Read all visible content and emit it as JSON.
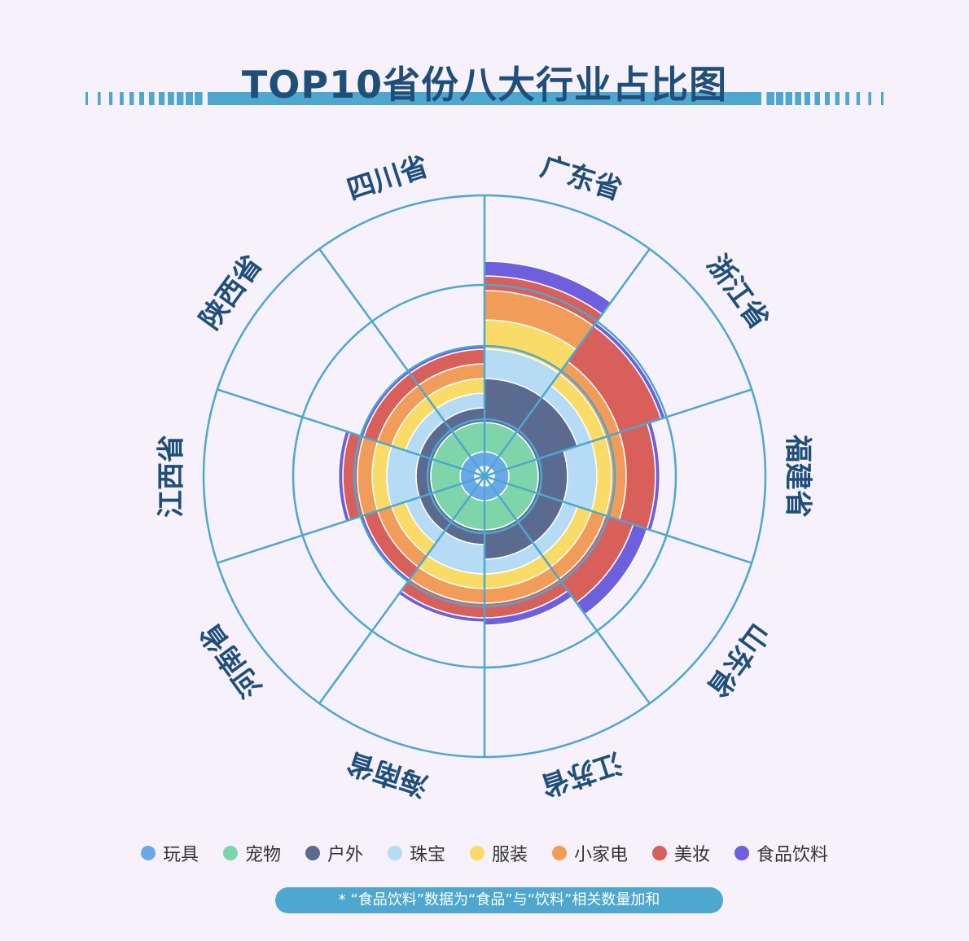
{
  "chart_data": {
    "type": "polar-bar",
    "title": "TOP10省份八大行业占比图",
    "categories": [
      "广东省",
      "浙江省",
      "福建省",
      "山东省",
      "江苏省",
      "海南省",
      "河南省",
      "江西省",
      "陕西省",
      "四川省"
    ],
    "series": [
      {
        "name": "玩具",
        "color": "#6aa9e9",
        "values": [
          1,
          1,
          1,
          1,
          1,
          1,
          1,
          1,
          1,
          1
        ]
      },
      {
        "name": "宠物",
        "color": "#7fd5aa",
        "values": [
          2,
          2,
          2,
          2,
          2,
          2,
          2,
          2,
          2,
          2
        ]
      },
      {
        "name": "户外",
        "color": "#5b6a8f",
        "values": [
          3,
          3,
          2,
          2,
          2,
          1,
          1,
          1,
          1,
          1
        ]
      },
      {
        "name": "珠宝",
        "color": "#b5dbf5",
        "values": [
          2,
          1,
          2,
          1,
          1,
          2,
          1,
          2,
          1,
          1
        ]
      },
      {
        "name": "服装",
        "color": "#f9dc67",
        "values": [
          2,
          1,
          1,
          1,
          1,
          1,
          1,
          1,
          1,
          1
        ]
      },
      {
        "name": "小家电",
        "color": "#f19c58",
        "values": [
          2,
          1,
          1,
          1,
          1,
          1,
          1,
          1,
          1,
          1
        ]
      },
      {
        "name": "美妆",
        "color": "#d9605a",
        "values": [
          1,
          3,
          2,
          2,
          1,
          1,
          1,
          1,
          1,
          1
        ]
      },
      {
        "name": "食品饮料",
        "color": "#6d5fdd",
        "values": [
          1,
          0.3,
          0.3,
          1,
          0.5,
          0.3,
          0.3,
          0.3,
          0.3,
          0.3
        ]
      }
    ],
    "grid": true,
    "legend_position": "bottom"
  },
  "footnote": "* “食品饮料”数据为“食品”与“饮料”相关数量加和",
  "colors": {
    "grid": "#4da7cf",
    "title": "#1f4f79",
    "label": "#1f4f79"
  }
}
